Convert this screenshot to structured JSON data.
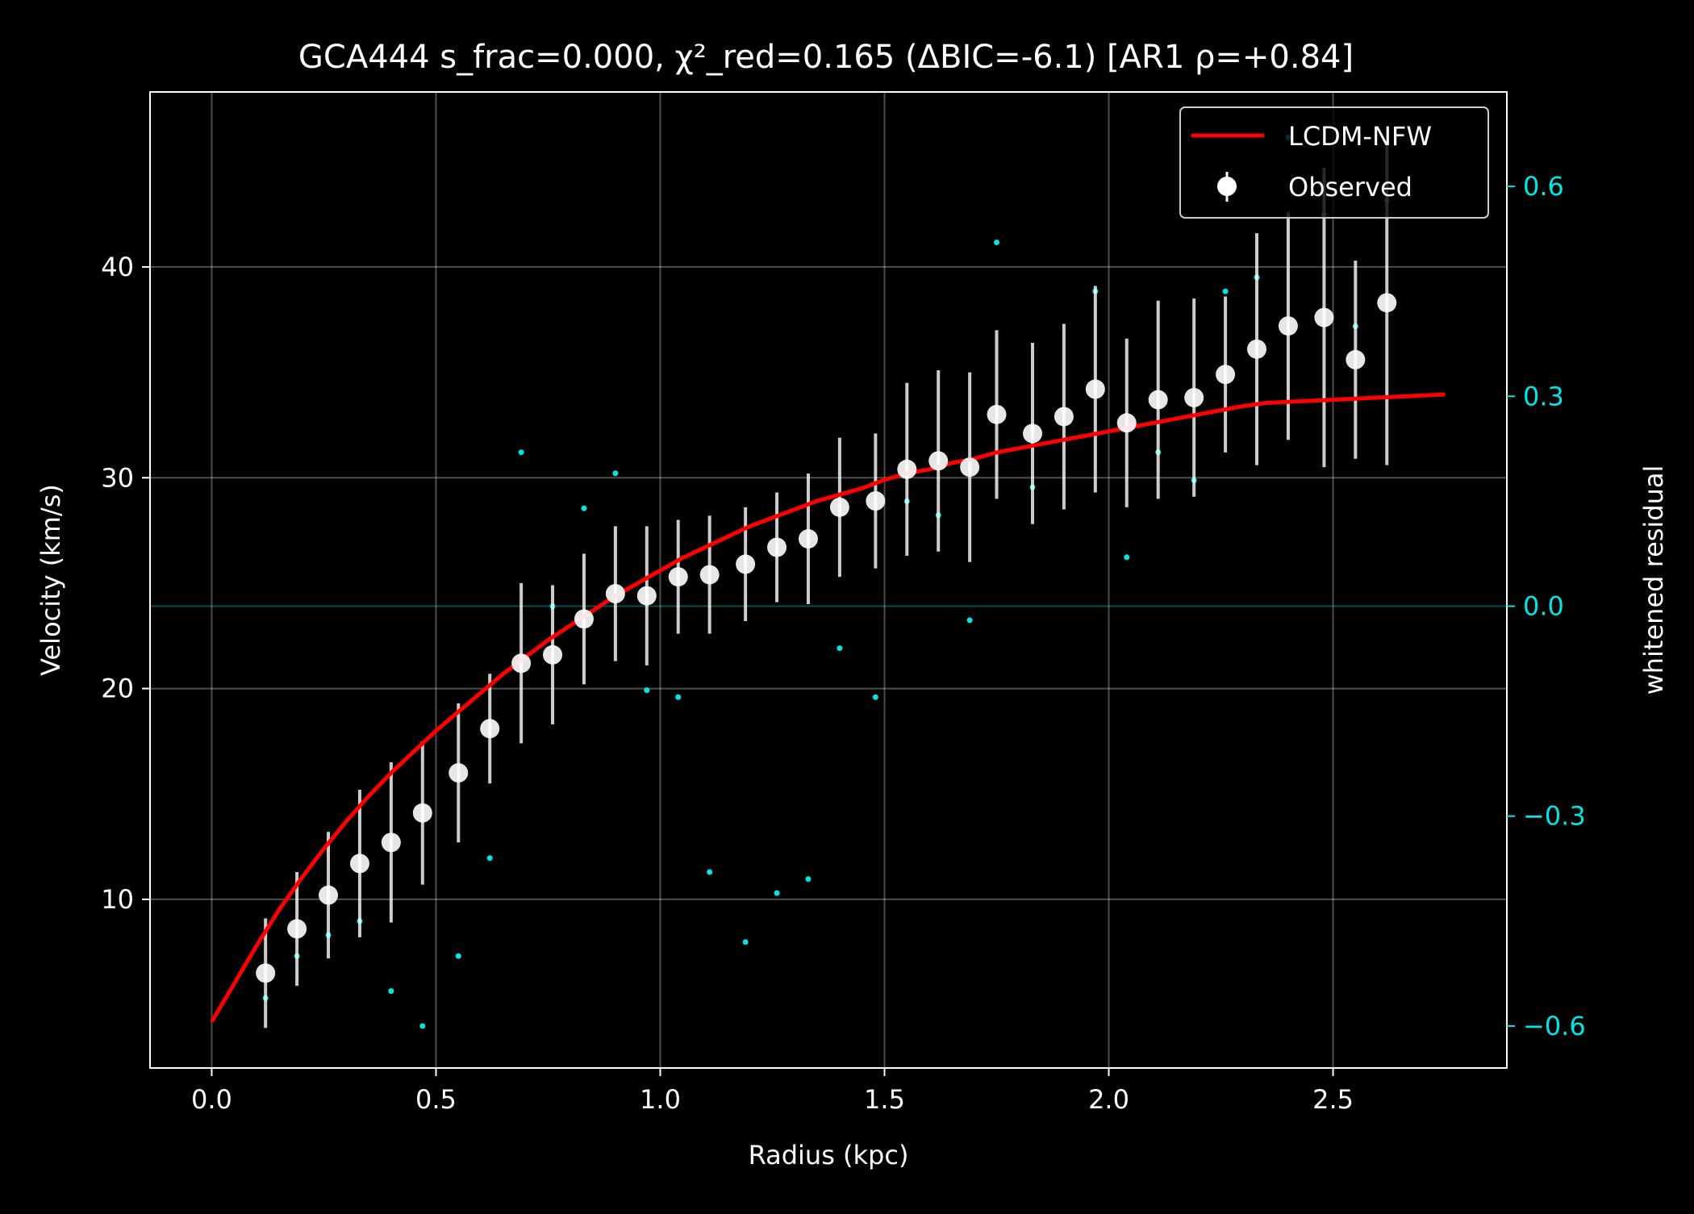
{
  "chart_data": {
    "type": "scatter",
    "title": "GCA444  s_frac=0.000, χ²_red=0.165  (ΔBIC=-6.1) [AR1 ρ=+0.84]",
    "xlabel": "Radius (kpc)",
    "ylabel": "Velocity (km/s)",
    "y2label": "whitened residual",
    "xlim": [
      -0.1375,
      2.8875
    ],
    "ylim": [
      2.0,
      48.3
    ],
    "y2lim": [
      -0.66,
      0.735
    ],
    "xticks": [
      0.0,
      0.5,
      1.0,
      1.5,
      2.0,
      2.5
    ],
    "xtick_labels": [
      "0.0",
      "0.5",
      "1.0",
      "1.5",
      "2.0",
      "2.5"
    ],
    "yticks": [
      10,
      20,
      30,
      40
    ],
    "ytick_labels": [
      "10",
      "20",
      "30",
      "40"
    ],
    "y2ticks": [
      -0.6,
      -0.3,
      0.0,
      0.3,
      0.6
    ],
    "y2tick_labels": [
      "−0.6",
      "−0.3",
      "0.0",
      "0.3",
      "0.6"
    ],
    "grid": true,
    "legend_position": "top-right",
    "colors": {
      "background": "#000000",
      "model": "#ff0000",
      "observed": "#ffffff",
      "residual": "#00e5e5",
      "text": "#ffffff"
    },
    "series": [
      {
        "name": "LCDM-NFW",
        "kind": "line",
        "x": [
          0.0,
          0.05,
          0.1,
          0.15,
          0.2,
          0.25,
          0.3,
          0.35,
          0.4,
          0.45,
          0.5,
          0.55,
          0.6,
          0.65,
          0.7,
          0.75,
          0.8,
          0.85,
          0.9,
          0.95,
          1.0,
          1.05,
          1.1,
          1.15,
          1.2,
          1.25,
          1.3,
          1.35,
          1.4,
          1.45,
          1.5,
          1.55,
          1.6,
          1.65,
          1.7,
          1.75,
          1.8,
          1.85,
          1.9,
          1.95,
          2.0,
          2.05,
          2.1,
          2.15,
          2.2,
          2.25,
          2.3,
          2.35,
          2.4,
          2.45,
          2.5,
          2.55,
          2.6,
          2.65,
          2.7,
          2.75
        ],
        "y": [
          4.2,
          6.0,
          7.8,
          9.5,
          11.0,
          12.4,
          13.7,
          14.9,
          16.0,
          17.0,
          18.0,
          18.9,
          19.8,
          20.7,
          21.5,
          22.3,
          23.0,
          23.7,
          24.4,
          25.0,
          25.6,
          26.2,
          26.7,
          27.2,
          27.7,
          28.1,
          28.5,
          28.9,
          29.2,
          29.5,
          29.9,
          30.2,
          30.4,
          30.7,
          30.9,
          31.2,
          31.4,
          31.6,
          31.8,
          32.0,
          32.2,
          32.4,
          32.6,
          32.8,
          33.0,
          33.2,
          33.4,
          33.55,
          33.6,
          33.65,
          33.7,
          33.75,
          33.8,
          33.85,
          33.9,
          33.95
        ]
      },
      {
        "name": "Observed",
        "kind": "errorbar",
        "x": [
          0.12,
          0.19,
          0.26,
          0.33,
          0.4,
          0.47,
          0.55,
          0.62,
          0.69,
          0.76,
          0.83,
          0.9,
          0.97,
          1.04,
          1.11,
          1.19,
          1.26,
          1.33,
          1.4,
          1.48,
          1.55,
          1.62,
          1.69,
          1.75,
          1.83,
          1.9,
          1.97,
          2.04,
          2.11,
          2.19,
          2.26,
          2.33,
          2.4,
          2.48,
          2.55,
          2.62
        ],
        "y": [
          6.5,
          8.6,
          10.2,
          11.7,
          12.7,
          14.1,
          16.0,
          18.1,
          21.2,
          21.6,
          23.3,
          24.5,
          24.4,
          25.3,
          25.4,
          25.9,
          26.7,
          27.1,
          28.6,
          28.9,
          30.4,
          30.8,
          30.5,
          33.0,
          32.1,
          32.9,
          34.2,
          32.6,
          33.7,
          33.8,
          34.9,
          36.1,
          37.2,
          37.6,
          35.6,
          38.3
        ],
        "yerr": [
          2.6,
          2.7,
          3.0,
          3.5,
          3.8,
          3.4,
          3.3,
          2.6,
          3.8,
          3.3,
          3.1,
          3.2,
          3.3,
          2.7,
          2.8,
          2.7,
          2.6,
          3.1,
          3.3,
          3.2,
          4.1,
          4.3,
          4.5,
          4.0,
          4.3,
          4.4,
          4.9,
          4.0,
          4.7,
          4.7,
          3.7,
          5.5,
          5.4,
          7.1,
          4.7,
          7.7
        ]
      },
      {
        "name": "",
        "kind": "residual",
        "axis": "right",
        "x": [
          0.12,
          0.19,
          0.26,
          0.33,
          0.4,
          0.47,
          0.55,
          0.62,
          0.69,
          0.76,
          0.83,
          0.9,
          0.97,
          1.04,
          1.11,
          1.19,
          1.26,
          1.33,
          1.4,
          1.48,
          1.55,
          1.62,
          1.69,
          1.75,
          1.83,
          1.9,
          1.97,
          2.04,
          2.11,
          2.19,
          2.26,
          2.33,
          2.4,
          2.48,
          2.55,
          2.62
        ],
        "y": [
          -0.56,
          -0.5,
          -0.47,
          -0.45,
          -0.55,
          -0.6,
          -0.5,
          -0.36,
          0.22,
          0.0,
          0.14,
          0.19,
          -0.12,
          -0.13,
          -0.38,
          -0.48,
          -0.41,
          -0.39,
          -0.06,
          -0.13,
          0.15,
          0.13,
          -0.02,
          0.52,
          0.17,
          0.28,
          0.45,
          0.07,
          0.22,
          0.18,
          0.45,
          0.47,
          0.67,
          0.56,
          0.4,
          0.58
        ]
      }
    ]
  }
}
